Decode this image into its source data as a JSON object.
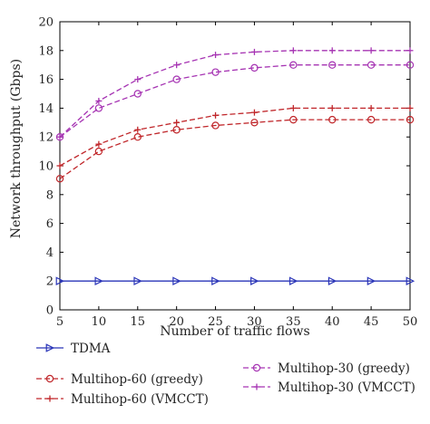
{
  "chart_data": {
    "type": "line",
    "xlabel": "Number of traffic flows",
    "ylabel": "Network throughput (Gbps)",
    "x": [
      5,
      10,
      15,
      20,
      25,
      30,
      35,
      40,
      45,
      50
    ],
    "xlim": [
      5,
      50
    ],
    "ylim": [
      0,
      20
    ],
    "xticks": [
      5,
      10,
      15,
      20,
      25,
      30,
      35,
      40,
      45,
      50
    ],
    "yticks": [
      0,
      2,
      4,
      6,
      8,
      10,
      12,
      14,
      16,
      18,
      20
    ],
    "grid": false,
    "legend_position": "bottom",
    "series": [
      {
        "name": "TDMA",
        "color": "#2a35b8",
        "marker": "triangle-right",
        "dash": "solid",
        "values": [
          2,
          2,
          2,
          2,
          2,
          2,
          2,
          2,
          2,
          2
        ]
      },
      {
        "name": "Multihop-60 (greedy)",
        "color": "#c0262a",
        "marker": "circle",
        "dash": "dashed",
        "values": [
          9.1,
          11.0,
          12.0,
          12.5,
          12.8,
          13.0,
          13.2,
          13.2,
          13.2,
          13.2
        ]
      },
      {
        "name": "Multihop-60 (VMCCT)",
        "color": "#c0262a",
        "marker": "plus",
        "dash": "dashed",
        "values": [
          10.0,
          11.5,
          12.5,
          13.0,
          13.5,
          13.7,
          14.0,
          14.0,
          14.0,
          14.0
        ]
      },
      {
        "name": "Multihop-30 (greedy)",
        "color": "#a634b3",
        "marker": "circle",
        "dash": "dashed",
        "values": [
          12.0,
          14.0,
          15.0,
          16.0,
          16.5,
          16.8,
          17.0,
          17.0,
          17.0,
          17.0
        ]
      },
      {
        "name": "Multihop-30 (VMCCT)",
        "color": "#a634b3",
        "marker": "plus",
        "dash": "dashed",
        "values": [
          12.0,
          14.5,
          16.0,
          17.0,
          17.7,
          17.9,
          18.0,
          18.0,
          18.0,
          18.0
        ]
      }
    ]
  }
}
